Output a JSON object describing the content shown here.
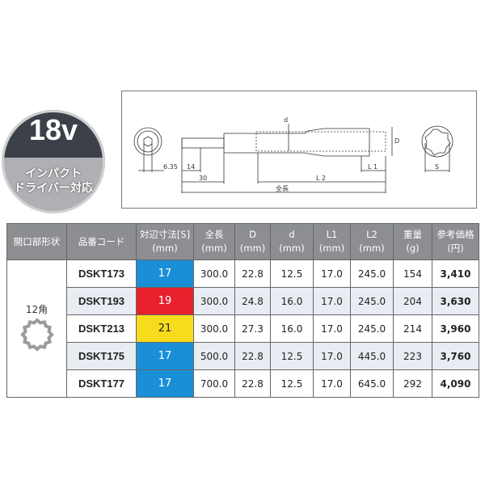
{
  "badge": {
    "voltage": "18v",
    "line1": "インパクト",
    "line2": "ドライバー対応"
  },
  "diagram": {
    "labels": {
      "hex": "6.35",
      "bit": "14",
      "shank": "30",
      "l2": "L 2",
      "l1": "L 1",
      "total": "全長",
      "d_inner": "d",
      "d_outer": "D",
      "s": "S"
    }
  },
  "table": {
    "headers": [
      [
        "開口部形状"
      ],
      [
        "品番コード"
      ],
      [
        "対辺寸法[S]",
        "(mm)"
      ],
      [
        "全長",
        "(mm)"
      ],
      [
        "D",
        "(mm)"
      ],
      [
        "d",
        "(mm)"
      ],
      [
        "L1",
        "(mm)"
      ],
      [
        "L2",
        "(mm)"
      ],
      [
        "重量",
        "(g)"
      ],
      [
        "参考価格",
        "(円)"
      ]
    ],
    "shape_label": "12角",
    "size_colors": {
      "17": "#1a8fd8",
      "19": "#e8202c",
      "21": "#f7dc1e"
    },
    "rows": [
      {
        "code": "DSKT173",
        "s": "17",
        "total": "300.0",
        "D": "22.8",
        "d": "12.5",
        "L1": "17.0",
        "L2": "245.0",
        "weight": "154",
        "price": "3,410"
      },
      {
        "code": "DSKT193",
        "s": "19",
        "total": "300.0",
        "D": "24.8",
        "d": "16.0",
        "L1": "17.0",
        "L2": "245.0",
        "weight": "204",
        "price": "3,630"
      },
      {
        "code": "DSKT213",
        "s": "21",
        "total": "300.0",
        "D": "27.3",
        "d": "16.0",
        "L1": "17.0",
        "L2": "245.0",
        "weight": "214",
        "price": "3,960"
      },
      {
        "code": "DSKT175",
        "s": "17",
        "total": "500.0",
        "D": "22.8",
        "d": "12.5",
        "L1": "17.0",
        "L2": "445.0",
        "weight": "223",
        "price": "3,760"
      },
      {
        "code": "DSKT177",
        "s": "17",
        "total": "700.0",
        "D": "22.8",
        "d": "12.5",
        "L1": "17.0",
        "L2": "645.0",
        "weight": "292",
        "price": "4,090"
      }
    ]
  }
}
